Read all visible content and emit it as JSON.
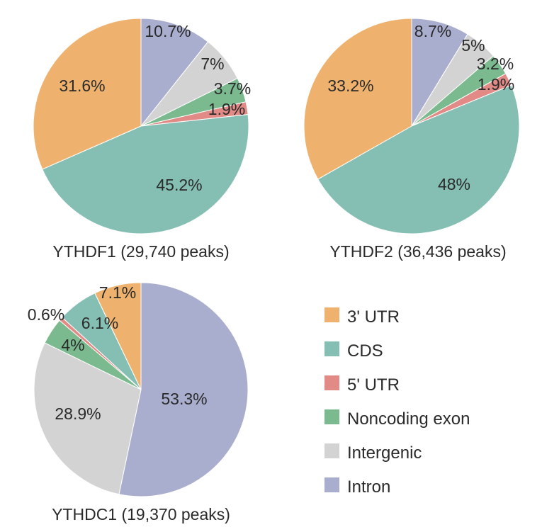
{
  "legend": [
    {
      "name": "3' UTR",
      "color": "#EFB26E"
    },
    {
      "name": "CDS",
      "color": "#85BFB3"
    },
    {
      "name": "5' UTR",
      "color": "#E28A86"
    },
    {
      "name": "Noncoding exon",
      "color": "#7BBA8F"
    },
    {
      "name": "Intergenic",
      "color": "#D3D3D3"
    },
    {
      "name": "Intron",
      "color": "#AAAECE"
    }
  ],
  "chart_data": [
    {
      "type": "pie",
      "title": "YTHDF1 (29,740 peaks)",
      "slices": [
        {
          "name": "Intron",
          "value": 10.7,
          "label": "10.7%"
        },
        {
          "name": "Intergenic",
          "value": 7,
          "label": "7%"
        },
        {
          "name": "Noncoding exon",
          "value": 3.7,
          "label": "3.7%"
        },
        {
          "name": "5' UTR",
          "value": 1.9,
          "label": "1.9%"
        },
        {
          "name": "CDS",
          "value": 45.2,
          "label": "45.2%"
        },
        {
          "name": "3' UTR",
          "value": 31.6,
          "label": "31.6%"
        }
      ]
    },
    {
      "type": "pie",
      "title": "YTHDF2 (36,436 peaks)",
      "slices": [
        {
          "name": "Intron",
          "value": 8.7,
          "label": "8.7%"
        },
        {
          "name": "Intergenic",
          "value": 5,
          "label": "5%"
        },
        {
          "name": "Noncoding exon",
          "value": 3.2,
          "label": "3.2%"
        },
        {
          "name": "5' UTR",
          "value": 1.9,
          "label": "1.9%"
        },
        {
          "name": "CDS",
          "value": 48,
          "label": "48%"
        },
        {
          "name": "3' UTR",
          "value": 33.2,
          "label": "33.2%"
        }
      ]
    },
    {
      "type": "pie",
      "title": "YTHDC1 (19,370 peaks)",
      "slices": [
        {
          "name": "Intron",
          "value": 53.3,
          "label": "53.3%"
        },
        {
          "name": "Intergenic",
          "value": 28.9,
          "label": "28.9%"
        },
        {
          "name": "Noncoding exon",
          "value": 4,
          "label": "4%"
        },
        {
          "name": "5' UTR",
          "value": 0.6,
          "label": "0.6%"
        },
        {
          "name": "CDS",
          "value": 6.1,
          "label": "6.1%"
        },
        {
          "name": "3' UTR",
          "value": 7.1,
          "label": "7.1%"
        }
      ]
    }
  ]
}
